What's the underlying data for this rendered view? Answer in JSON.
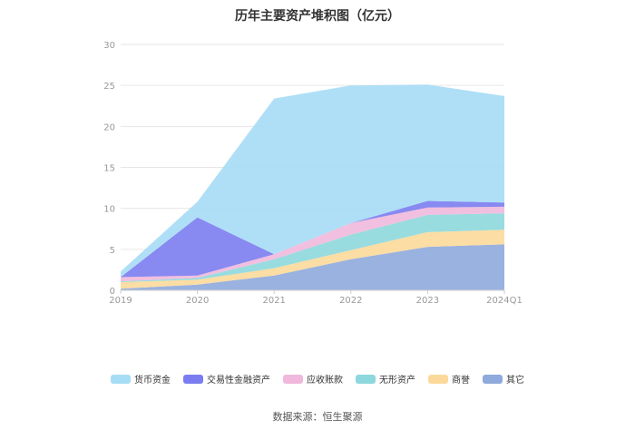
{
  "chart_data": {
    "type": "area",
    "stacked": true,
    "title": "历年主要资产堆积图（亿元）",
    "categories": [
      "2019",
      "2020",
      "2021",
      "2022",
      "2023",
      "2024Q1"
    ],
    "ylim": [
      0,
      30
    ],
    "yticks": [
      0,
      5,
      10,
      15,
      20,
      25,
      30
    ],
    "grid": true,
    "legend_position": "bottom",
    "series": [
      {
        "name": "其它",
        "color": "#8faadc",
        "values": [
          0.2,
          0.7,
          1.8,
          3.8,
          5.3,
          5.6
        ]
      },
      {
        "name": "商誉",
        "color": "#fcd99a",
        "values": [
          0.8,
          0.6,
          0.9,
          1.1,
          1.8,
          1.8
        ]
      },
      {
        "name": "无形资产",
        "color": "#8dd8dc",
        "values": [
          0.1,
          0.2,
          1.1,
          1.9,
          2.1,
          2.0
        ]
      },
      {
        "name": "应收账款",
        "color": "#efb8dc",
        "values": [
          0.5,
          0.3,
          0.6,
          1.4,
          0.9,
          0.8
        ]
      },
      {
        "name": "交易性金融资产",
        "color": "#7b7cf0",
        "values": [
          0.0,
          7.1,
          0.0,
          0.0,
          0.8,
          0.5
        ]
      },
      {
        "name": "货币资金",
        "color": "#a6dcf5",
        "values": [
          0.7,
          1.9,
          19.0,
          16.8,
          14.2,
          13.0
        ]
      }
    ]
  },
  "legend_order": [
    "货币资金",
    "交易性金融资产",
    "应收账款",
    "无形资产",
    "商誉",
    "其它"
  ],
  "source": "数据来源：恒生聚源"
}
